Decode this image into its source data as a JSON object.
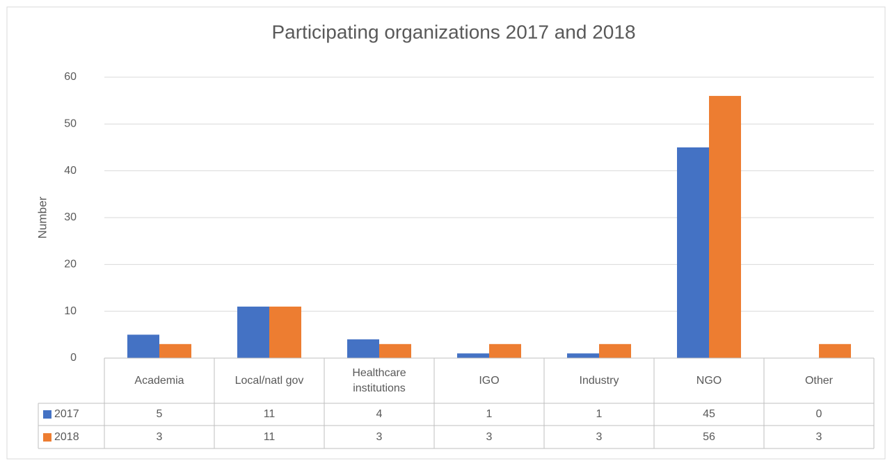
{
  "chart_data": {
    "type": "bar",
    "title": "Participating organizations 2017 and 2018",
    "y_label": "Number",
    "categories": [
      "Academia",
      "Local/natl gov",
      "Healthcare institutions",
      "IGO",
      "Industry",
      "NGO",
      "Other"
    ],
    "series": [
      {
        "name": "2017",
        "color": "#4472c4",
        "values": [
          5,
          11,
          4,
          1,
          1,
          45,
          0
        ]
      },
      {
        "name": "2018",
        "color": "#ed7d31",
        "values": [
          3,
          11,
          3,
          3,
          3,
          56,
          3
        ]
      }
    ],
    "ylim": [
      0,
      60
    ],
    "yticks": [
      0,
      10,
      20,
      30,
      40,
      50,
      60
    ],
    "grid": true,
    "data_table": true
  }
}
